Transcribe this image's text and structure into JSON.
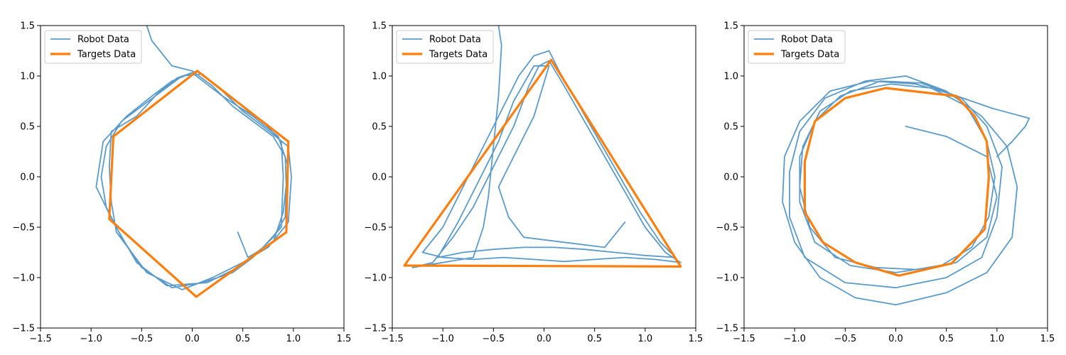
{
  "chart_data": [
    {
      "type": "line",
      "xlim": [
        -1.5,
        1.5
      ],
      "ylim": [
        -1.5,
        1.5
      ],
      "xticks": [
        -1.5,
        -1.0,
        -0.5,
        0.0,
        0.5,
        1.0,
        1.5
      ],
      "yticks": [
        -1.5,
        -1.0,
        -0.5,
        0.0,
        0.5,
        1.0,
        1.5
      ],
      "xtick_labels": [
        "−1.5",
        "−1.0",
        "−0.5",
        "0.0",
        "0.5",
        "1.0",
        "1.5"
      ],
      "ytick_labels": [
        "−1.5",
        "−1.0",
        "−0.5",
        "0.0",
        "0.5",
        "1.0",
        "1.5"
      ],
      "grid": false,
      "legend_position": "top-left",
      "series": [
        {
          "name": "Robot Data",
          "color": "#5b9bc9",
          "points": [
            [
              -0.45,
              1.5
            ],
            [
              -0.4,
              1.35
            ],
            [
              -0.2,
              1.1
            ],
            [
              0.0,
              1.05
            ],
            [
              0.2,
              0.9
            ],
            [
              0.4,
              0.7
            ],
            [
              0.6,
              0.55
            ],
            [
              0.8,
              0.4
            ],
            [
              0.92,
              0.2
            ],
            [
              0.93,
              -0.1
            ],
            [
              0.92,
              -0.4
            ],
            [
              0.8,
              -0.6
            ],
            [
              0.6,
              -0.8
            ],
            [
              0.4,
              -0.95
            ],
            [
              0.1,
              -1.05
            ],
            [
              -0.2,
              -1.1
            ],
            [
              -0.5,
              -0.9
            ],
            [
              -0.7,
              -0.6
            ],
            [
              -0.85,
              -0.3
            ],
            [
              -0.9,
              0.0
            ],
            [
              -0.85,
              0.3
            ],
            [
              -0.7,
              0.55
            ],
            [
              -0.5,
              0.7
            ],
            [
              -0.3,
              0.85
            ],
            [
              -0.1,
              1.0
            ],
            [
              0.1,
              1.02
            ],
            [
              0.3,
              0.85
            ],
            [
              0.5,
              0.65
            ],
            [
              0.7,
              0.5
            ],
            [
              0.95,
              0.3
            ],
            [
              0.98,
              0.0
            ],
            [
              0.95,
              -0.45
            ],
            [
              0.75,
              -0.7
            ],
            [
              0.5,
              -0.85
            ],
            [
              0.2,
              -1.0
            ],
            [
              -0.1,
              -1.12
            ],
            [
              -0.45,
              -0.95
            ],
            [
              -0.75,
              -0.55
            ],
            [
              -0.8,
              -0.25
            ],
            [
              -0.82,
              0.1
            ],
            [
              -0.8,
              0.45
            ],
            [
              -0.55,
              0.6
            ],
            [
              -0.35,
              0.82
            ],
            [
              -0.15,
              0.98
            ],
            [
              0.05,
              1.05
            ],
            [
              0.25,
              0.9
            ],
            [
              0.45,
              0.7
            ],
            [
              0.7,
              0.55
            ],
            [
              0.88,
              0.35
            ],
            [
              0.9,
              0.0
            ],
            [
              0.88,
              -0.5
            ],
            [
              0.7,
              -0.7
            ],
            [
              0.45,
              -0.9
            ],
            [
              0.15,
              -1.05
            ],
            [
              -0.25,
              -1.08
            ],
            [
              -0.55,
              -0.85
            ],
            [
              -0.78,
              -0.45
            ],
            [
              -0.95,
              -0.1
            ],
            [
              -0.88,
              0.35
            ],
            [
              -0.65,
              0.6
            ],
            [
              -0.4,
              0.8
            ],
            [
              -0.2,
              0.95
            ],
            [
              0.0,
              1.03
            ],
            [
              0.3,
              0.8
            ],
            [
              0.6,
              0.6
            ],
            [
              0.85,
              0.4
            ],
            [
              0.95,
              0.1
            ],
            [
              0.9,
              -0.35
            ],
            [
              0.8,
              -0.65
            ],
            [
              0.55,
              -0.8
            ],
            [
              0.45,
              -0.55
            ]
          ]
        },
        {
          "name": "Targets Data",
          "color": "#ff7f0e",
          "points": [
            [
              0.05,
              1.05
            ],
            [
              0.95,
              0.35
            ],
            [
              0.93,
              -0.55
            ],
            [
              0.04,
              -1.19
            ],
            [
              -0.82,
              -0.42
            ],
            [
              -0.78,
              0.4
            ],
            [
              0.05,
              1.05
            ]
          ]
        }
      ]
    },
    {
      "type": "line",
      "xlim": [
        -1.5,
        1.5
      ],
      "ylim": [
        -1.5,
        1.5
      ],
      "xticks": [
        -1.5,
        -1.0,
        -0.5,
        0.0,
        0.5,
        1.0,
        1.5
      ],
      "yticks": [
        -1.5,
        -1.0,
        -0.5,
        0.0,
        0.5,
        1.0,
        1.5
      ],
      "xtick_labels": [
        "−1.5",
        "−1.0",
        "−0.5",
        "0.0",
        "0.5",
        "1.0",
        "1.5"
      ],
      "ytick_labels": [
        "−1.5",
        "−1.0",
        "−0.5",
        "0.0",
        "0.5",
        "1.0",
        "1.5"
      ],
      "grid": false,
      "legend_position": "top-left",
      "series": [
        {
          "name": "Robot Data",
          "color": "#5b9bc9",
          "points": [
            [
              -0.45,
              1.5
            ],
            [
              -0.42,
              1.3
            ],
            [
              -0.45,
              0.8
            ],
            [
              -0.5,
              0.3
            ],
            [
              -0.55,
              -0.2
            ],
            [
              -0.6,
              -0.5
            ],
            [
              -0.7,
              -0.8
            ],
            [
              -1.0,
              -0.85
            ],
            [
              -1.3,
              -0.9
            ],
            [
              -1.1,
              -0.85
            ],
            [
              -0.9,
              -0.6
            ],
            [
              -0.7,
              -0.3
            ],
            [
              -0.5,
              0.1
            ],
            [
              -0.3,
              0.5
            ],
            [
              -0.15,
              0.9
            ],
            [
              -0.05,
              1.1
            ],
            [
              0.05,
              1.15
            ],
            [
              0.2,
              0.9
            ],
            [
              0.4,
              0.55
            ],
            [
              0.6,
              0.2
            ],
            [
              0.8,
              -0.15
            ],
            [
              1.0,
              -0.5
            ],
            [
              1.2,
              -0.75
            ],
            [
              1.35,
              -0.85
            ],
            [
              1.1,
              -0.82
            ],
            [
              0.8,
              -0.8
            ],
            [
              0.5,
              -0.82
            ],
            [
              0.2,
              -0.84
            ],
            [
              -0.1,
              -0.82
            ],
            [
              -0.4,
              -0.8
            ],
            [
              -0.7,
              -0.82
            ],
            [
              -1.0,
              -0.8
            ],
            [
              -1.2,
              -0.75
            ],
            [
              -1.0,
              -0.5
            ],
            [
              -0.8,
              -0.1
            ],
            [
              -0.6,
              0.3
            ],
            [
              -0.4,
              0.7
            ],
            [
              -0.25,
              1.0
            ],
            [
              -0.1,
              1.2
            ],
            [
              0.05,
              1.25
            ],
            [
              0.15,
              1.05
            ],
            [
              0.35,
              0.7
            ],
            [
              0.55,
              0.35
            ],
            [
              0.75,
              0.0
            ],
            [
              0.95,
              -0.35
            ],
            [
              1.15,
              -0.65
            ],
            [
              1.3,
              -0.8
            ],
            [
              1.0,
              -0.78
            ],
            [
              0.7,
              -0.75
            ],
            [
              0.4,
              -0.72
            ],
            [
              0.1,
              -0.7
            ],
            [
              -0.2,
              -0.7
            ],
            [
              -0.5,
              -0.72
            ],
            [
              -0.8,
              -0.75
            ],
            [
              -1.05,
              -0.8
            ],
            [
              -0.85,
              -0.45
            ],
            [
              -0.65,
              -0.05
            ],
            [
              -0.45,
              0.35
            ],
            [
              -0.3,
              0.75
            ],
            [
              -0.1,
              1.1
            ],
            [
              0.05,
              1.1
            ],
            [
              -0.1,
              0.6
            ],
            [
              -0.3,
              0.2
            ],
            [
              -0.45,
              -0.1
            ],
            [
              -0.35,
              -0.4
            ],
            [
              -0.2,
              -0.6
            ],
            [
              0.2,
              -0.65
            ],
            [
              0.6,
              -0.7
            ],
            [
              0.8,
              -0.45
            ]
          ]
        },
        {
          "name": "Targets Data",
          "color": "#ff7f0e",
          "points": [
            [
              0.07,
              1.16
            ],
            [
              1.35,
              -0.89
            ],
            [
              -1.38,
              -0.88
            ],
            [
              0.07,
              1.16
            ]
          ]
        }
      ]
    },
    {
      "type": "line",
      "xlim": [
        -1.5,
        1.5
      ],
      "ylim": [
        -1.5,
        1.5
      ],
      "xticks": [
        -1.5,
        -1.0,
        -0.5,
        0.0,
        0.5,
        1.0,
        1.5
      ],
      "yticks": [
        -1.5,
        -1.0,
        -0.5,
        0.0,
        0.5,
        1.0,
        1.5
      ],
      "xtick_labels": [
        "−1.5",
        "−1.0",
        "−0.5",
        "0.0",
        "0.5",
        "1.0",
        "1.5"
      ],
      "ytick_labels": [
        "−1.5",
        "−1.0",
        "−0.5",
        "0.0",
        "0.5",
        "1.0",
        "1.5"
      ],
      "grid": false,
      "legend_position": "top-left",
      "series": [
        {
          "name": "Robot Data",
          "color": "#5b9bc9",
          "points": [
            [
              0.1,
              0.5
            ],
            [
              0.5,
              0.4
            ],
            [
              0.9,
              0.2
            ],
            [
              1.0,
              -0.2
            ],
            [
              0.9,
              -0.6
            ],
            [
              0.6,
              -0.85
            ],
            [
              0.2,
              -0.92
            ],
            [
              -0.2,
              -0.9
            ],
            [
              -0.6,
              -0.8
            ],
            [
              -0.85,
              -0.5
            ],
            [
              -0.95,
              -0.1
            ],
            [
              -0.92,
              0.3
            ],
            [
              -0.75,
              0.65
            ],
            [
              -0.45,
              0.85
            ],
            [
              -0.05,
              0.92
            ],
            [
              0.35,
              0.88
            ],
            [
              0.7,
              0.7
            ],
            [
              0.9,
              0.35
            ],
            [
              0.98,
              0.0
            ],
            [
              0.92,
              -0.4
            ],
            [
              0.75,
              -0.7
            ],
            [
              0.45,
              -0.88
            ],
            [
              0.0,
              -0.95
            ],
            [
              -0.45,
              -0.88
            ],
            [
              -0.8,
              -0.65
            ],
            [
              -0.95,
              -0.25
            ],
            [
              -0.95,
              0.2
            ],
            [
              -0.8,
              0.55
            ],
            [
              -0.55,
              0.8
            ],
            [
              -0.15,
              0.95
            ],
            [
              0.25,
              0.93
            ],
            [
              0.65,
              0.78
            ],
            [
              0.9,
              0.5
            ],
            [
              1.05,
              0.1
            ],
            [
              1.0,
              -0.4
            ],
            [
              0.85,
              -0.8
            ],
            [
              0.5,
              -1.0
            ],
            [
              0.0,
              -1.1
            ],
            [
              -0.5,
              -1.05
            ],
            [
              -0.9,
              -0.8
            ],
            [
              -1.05,
              -0.4
            ],
            [
              -1.05,
              0.05
            ],
            [
              -0.95,
              0.45
            ],
            [
              -0.7,
              0.78
            ],
            [
              -0.3,
              0.95
            ],
            [
              0.1,
              1.0
            ],
            [
              0.5,
              0.85
            ],
            [
              0.85,
              0.6
            ],
            [
              1.1,
              0.3
            ],
            [
              1.2,
              -0.1
            ],
            [
              1.15,
              -0.6
            ],
            [
              0.9,
              -0.95
            ],
            [
              0.5,
              -1.15
            ],
            [
              0.0,
              -1.27
            ],
            [
              -0.4,
              -1.2
            ],
            [
              -0.75,
              -1.0
            ],
            [
              -1.0,
              -0.65
            ],
            [
              -1.12,
              -0.25
            ],
            [
              -1.1,
              0.2
            ],
            [
              -0.95,
              0.55
            ],
            [
              -0.65,
              0.85
            ],
            [
              -0.25,
              0.95
            ],
            [
              0.2,
              0.92
            ],
            [
              0.55,
              0.82
            ],
            [
              0.95,
              0.68
            ],
            [
              1.32,
              0.58
            ],
            [
              1.28,
              0.5
            ],
            [
              1.15,
              0.35
            ],
            [
              1.0,
              0.2
            ]
          ]
        },
        {
          "name": "Targets Data",
          "color": "#ff7f0e",
          "points": [
            [
              -0.1,
              0.88
            ],
            [
              0.6,
              0.8
            ],
            [
              0.78,
              0.6
            ],
            [
              0.9,
              0.35
            ],
            [
              0.92,
              0.0
            ],
            [
              0.88,
              -0.52
            ],
            [
              0.55,
              -0.86
            ],
            [
              0.03,
              -0.98
            ],
            [
              -0.4,
              -0.85
            ],
            [
              -0.72,
              -0.65
            ],
            [
              -0.9,
              -0.35
            ],
            [
              -0.9,
              0.15
            ],
            [
              -0.8,
              0.55
            ],
            [
              -0.5,
              0.78
            ],
            [
              -0.1,
              0.88
            ]
          ]
        }
      ]
    }
  ]
}
